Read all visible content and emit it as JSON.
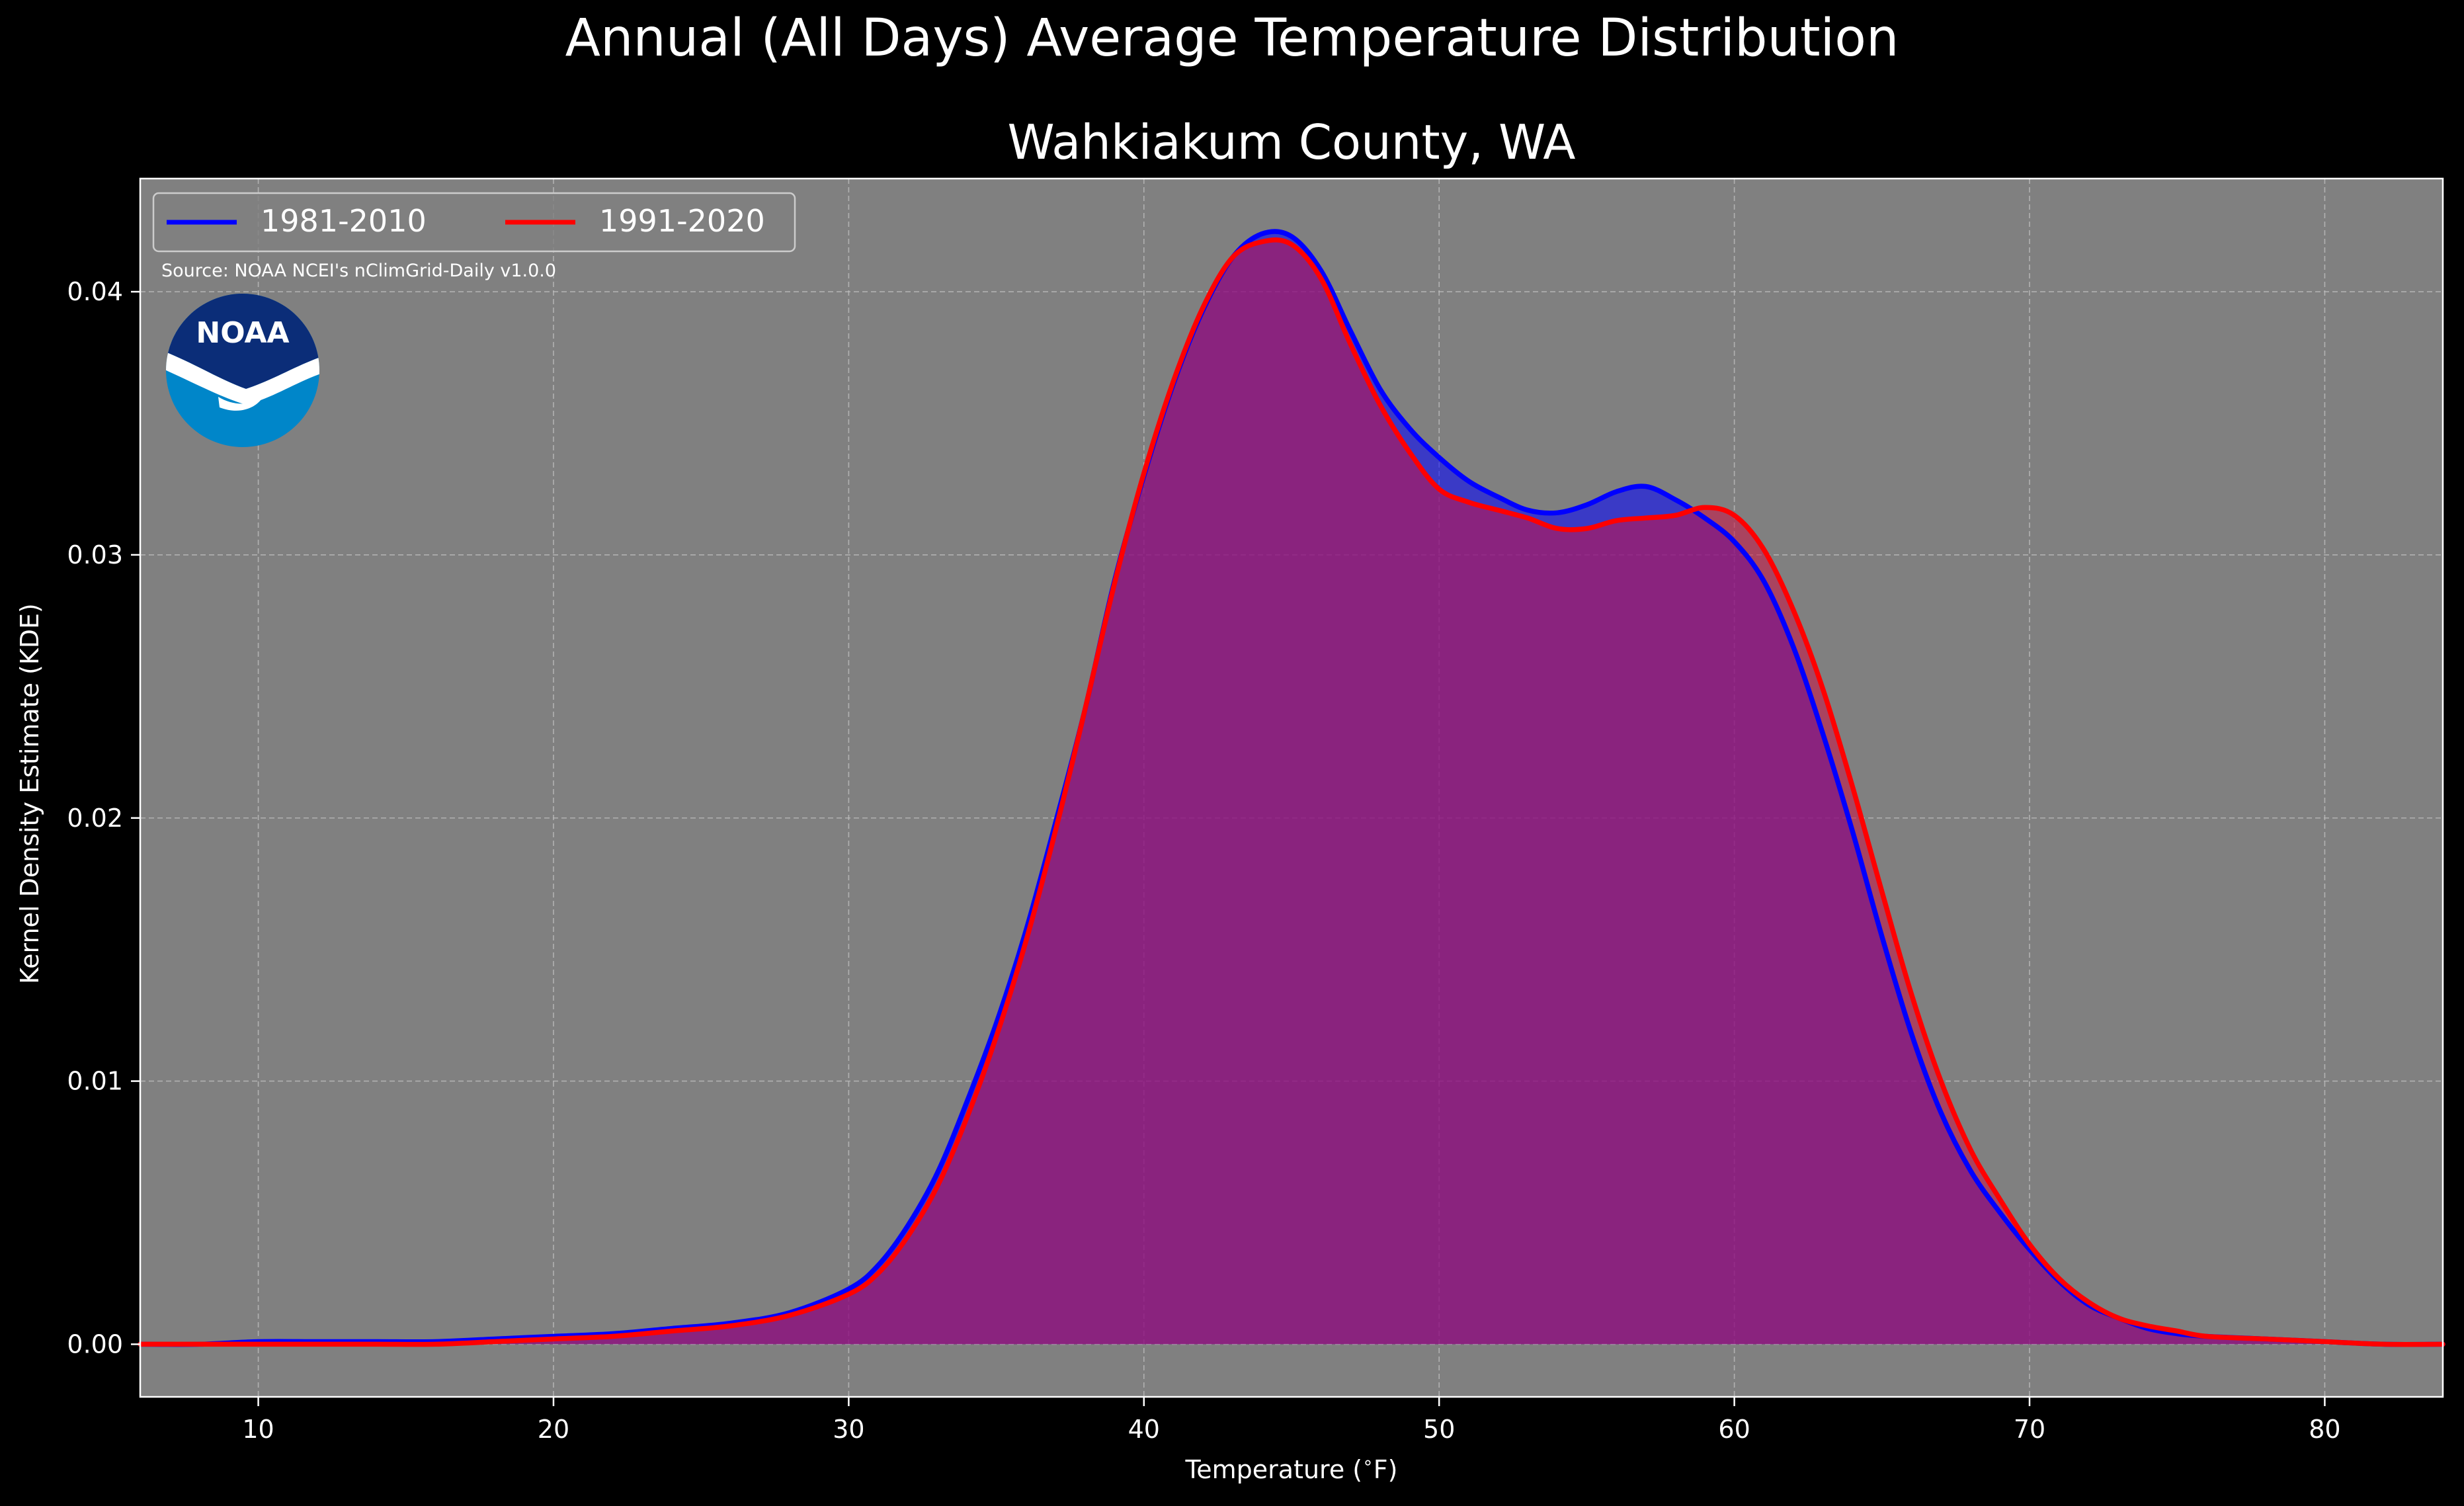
{
  "chart_data": {
    "type": "area",
    "title": "Annual (All Days) Average Temperature Distribution",
    "subtitle": "Wahkiakum County, WA",
    "xlabel": "Temperature ($^\\circ$F)",
    "ylabel": "Kernel Density Estimate (KDE)",
    "xlim": [
      6,
      84
    ],
    "ylim": [
      -0.002,
      0.0443
    ],
    "xticks": [
      10,
      20,
      30,
      40,
      50,
      60,
      70,
      80
    ],
    "xtick_labels": [
      "10",
      "20",
      "30",
      "40",
      "50",
      "60",
      "70",
      "80"
    ],
    "yticks": [
      0.0,
      0.01,
      0.02,
      0.03,
      0.04
    ],
    "ytick_labels": [
      "0.00",
      "0.01",
      "0.02",
      "0.03",
      "0.04"
    ],
    "grid": true,
    "legend_position": "top-left",
    "source_note": "Source: NOAA NCEI's nClimGrid-Daily v1.0.0",
    "logo_text": "NOAA",
    "series": [
      {
        "name": "1981-2010",
        "color": "#0000ff",
        "fill": "#0000ff",
        "x": [
          6,
          8,
          10,
          12,
          14,
          16,
          18,
          20,
          22,
          24,
          26,
          28,
          30,
          31,
          32,
          33,
          34,
          35,
          36,
          37,
          38,
          39,
          40,
          41,
          42,
          43,
          44,
          45,
          46,
          47,
          48,
          49,
          50,
          51,
          52,
          53,
          54,
          55,
          56,
          57,
          58,
          59,
          60,
          61,
          62,
          63,
          64,
          65,
          66,
          67,
          68,
          69,
          70,
          71,
          72,
          73,
          74,
          75,
          76,
          78,
          80,
          82,
          84
        ],
        "y": [
          0.0,
          0.0,
          0.0001,
          0.0001,
          0.0001,
          0.0001,
          0.0002,
          0.0003,
          0.0004,
          0.0006,
          0.0008,
          0.0012,
          0.0021,
          0.003,
          0.0045,
          0.0065,
          0.0092,
          0.0122,
          0.0157,
          0.0198,
          0.0241,
          0.029,
          0.033,
          0.0365,
          0.0393,
          0.0413,
          0.0422,
          0.0421,
          0.0408,
          0.0385,
          0.0363,
          0.0348,
          0.0337,
          0.0328,
          0.0322,
          0.0317,
          0.0316,
          0.0319,
          0.0324,
          0.0326,
          0.0321,
          0.0314,
          0.0305,
          0.029,
          0.0265,
          0.0232,
          0.0195,
          0.0155,
          0.0118,
          0.0088,
          0.0066,
          0.005,
          0.0036,
          0.0024,
          0.0015,
          0.001,
          0.0006,
          0.0004,
          0.0003,
          0.0002,
          0.0001,
          0.0,
          0.0
        ]
      },
      {
        "name": "1991-2020",
        "color": "#ff0000",
        "fill": "#cc1144",
        "x": [
          6,
          8,
          10,
          12,
          14,
          16,
          18,
          20,
          22,
          24,
          26,
          28,
          30,
          31,
          32,
          33,
          34,
          35,
          36,
          37,
          38,
          39,
          40,
          41,
          42,
          43,
          44,
          45,
          46,
          47,
          48,
          49,
          50,
          51,
          52,
          53,
          54,
          55,
          56,
          57,
          58,
          59,
          60,
          61,
          62,
          63,
          64,
          65,
          66,
          67,
          68,
          69,
          70,
          71,
          72,
          73,
          74,
          75,
          76,
          78,
          80,
          82,
          84
        ],
        "y": [
          0.0,
          0.0,
          0.0,
          0.0,
          0.0,
          0.0,
          0.0001,
          0.0002,
          0.0003,
          0.0005,
          0.0007,
          0.0011,
          0.0019,
          0.0027,
          0.0041,
          0.006,
          0.0086,
          0.0117,
          0.0153,
          0.0195,
          0.0241,
          0.0289,
          0.0331,
          0.0366,
          0.0394,
          0.0413,
          0.0419,
          0.0418,
          0.0405,
          0.038,
          0.0357,
          0.0339,
          0.0325,
          0.032,
          0.0317,
          0.0314,
          0.031,
          0.031,
          0.0313,
          0.0314,
          0.0315,
          0.0318,
          0.0315,
          0.0302,
          0.0279,
          0.0249,
          0.0212,
          0.0172,
          0.0133,
          0.01,
          0.0074,
          0.0055,
          0.0038,
          0.0025,
          0.0016,
          0.001,
          0.0007,
          0.0005,
          0.0003,
          0.0002,
          0.0001,
          0.0,
          0.0
        ]
      }
    ]
  }
}
